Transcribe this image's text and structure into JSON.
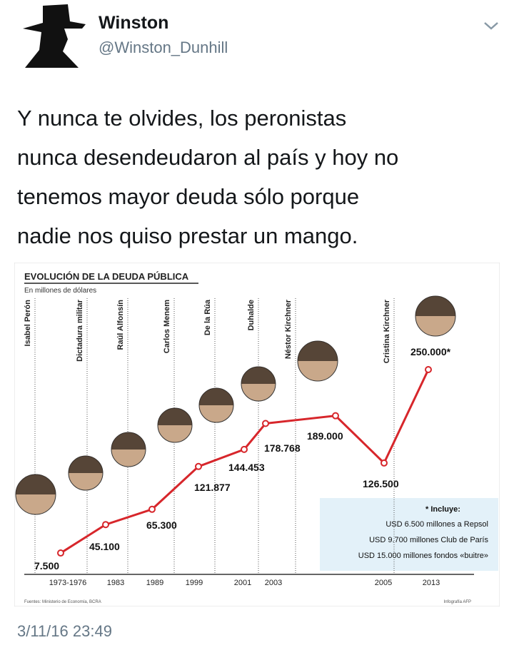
{
  "tweet": {
    "name": "Winston",
    "handle": "@Winston_Dunhill",
    "text_lines": [
      "Y nunca te olvides, los peronistas",
      "nunca desendeudaron al país y hoy no",
      "tenemos mayor deuda sólo porque",
      "nadie nos quiso prestar un mango."
    ],
    "timestamp": "3/11/16 23:49"
  },
  "chart_data": {
    "type": "line",
    "title": "EVOLUCIÓN DE LA DEUDA PÚBLICA",
    "subtitle": "En millones de dólares",
    "categories": [
      "1973-1976",
      "1983",
      "1989",
      "1999",
      "2001",
      "2003",
      null,
      "2005",
      "2013"
    ],
    "values": [
      7500,
      45100,
      65300,
      121877,
      144453,
      178768,
      189000,
      126500,
      250000
    ],
    "value_labels": [
      "7.500",
      "45.100",
      "65.300",
      "121.877",
      "144.453",
      "178.768",
      "189.000",
      "126.500",
      "250.000*"
    ],
    "color": "#d7262b",
    "annotations": [
      "Isabel Perón",
      "Dictadura militar",
      "Raúl Alfonsín",
      "Carlos Menem",
      "De la Rúa",
      "Duhalde",
      "Néstor Kirchner",
      "Cristina Kirchner"
    ],
    "note": {
      "heading": "* Incluye:",
      "lines": [
        "USD 6.500 millones a Repsol",
        "USD 9.700 millones Club de París",
        "USD 15.000 millones fondos «buitre»"
      ]
    },
    "source": "Fuentes: Ministerio de Economía, BCRA",
    "credit": "Infografía AFP"
  }
}
